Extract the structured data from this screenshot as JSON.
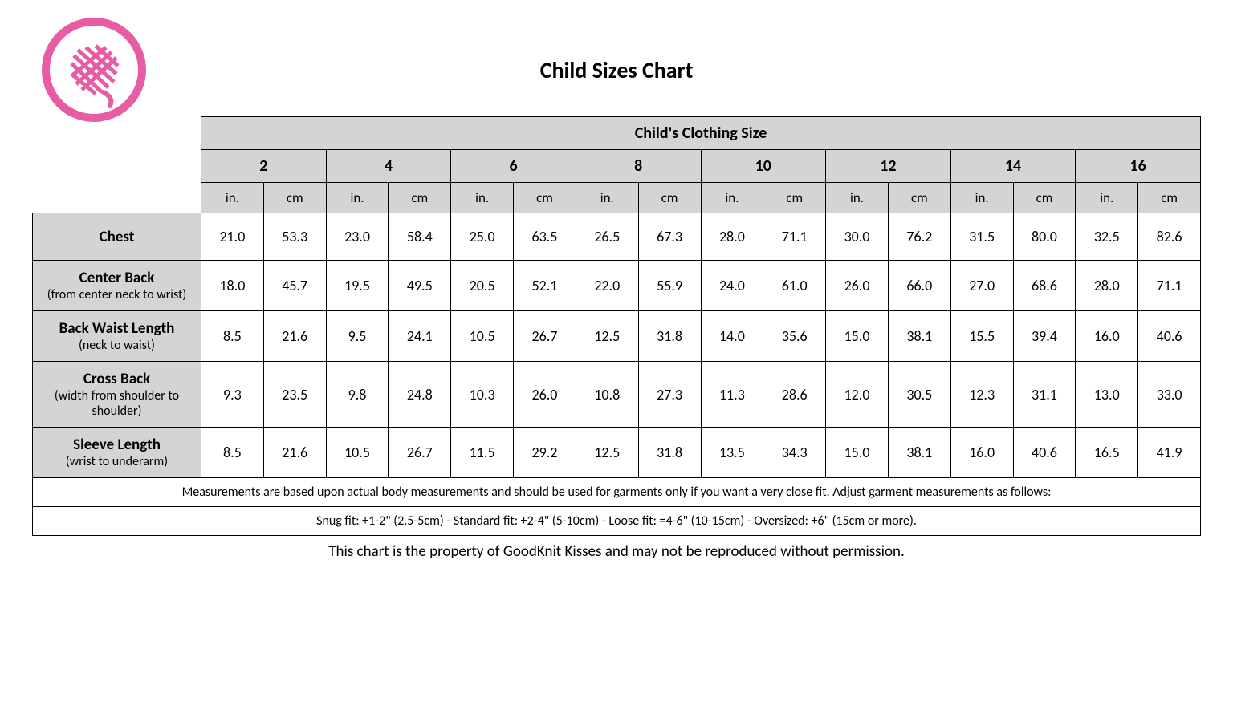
{
  "title": "Child Sizes Chart",
  "table_header": "Child's Clothing Size",
  "logo": {
    "circle_color": "#e75da3",
    "circle_stroke_width": 8,
    "diameter": 140
  },
  "sizes": [
    "2",
    "4",
    "6",
    "8",
    "10",
    "12",
    "14",
    "16"
  ],
  "units": [
    "in.",
    "cm"
  ],
  "rows": [
    {
      "label": "Chest",
      "sublabel": "",
      "values": [
        "21.0",
        "53.3",
        "23.0",
        "58.4",
        "25.0",
        "63.5",
        "26.5",
        "67.3",
        "28.0",
        "71.1",
        "30.0",
        "76.2",
        "31.5",
        "80.0",
        "32.5",
        "82.6"
      ]
    },
    {
      "label": "Center Back",
      "sublabel": "(from center neck to wrist)",
      "values": [
        "18.0",
        "45.7",
        "19.5",
        "49.5",
        "20.5",
        "52.1",
        "22.0",
        "55.9",
        "24.0",
        "61.0",
        "26.0",
        "66.0",
        "27.0",
        "68.6",
        "28.0",
        "71.1"
      ]
    },
    {
      "label": "Back Waist Length",
      "sublabel": "(neck to waist)",
      "values": [
        "8.5",
        "21.6",
        "9.5",
        "24.1",
        "10.5",
        "26.7",
        "12.5",
        "31.8",
        "14.0",
        "35.6",
        "15.0",
        "38.1",
        "15.5",
        "39.4",
        "16.0",
        "40.6"
      ]
    },
    {
      "label": "Cross Back",
      "sublabel": "(width from shoulder to shoulder)",
      "values": [
        "9.3",
        "23.5",
        "9.8",
        "24.8",
        "10.3",
        "26.0",
        "10.8",
        "27.3",
        "11.3",
        "28.6",
        "12.0",
        "30.5",
        "12.3",
        "31.1",
        "13.0",
        "33.0"
      ]
    },
    {
      "label": "Sleeve Length",
      "sublabel": "(wrist to underarm)",
      "values": [
        "8.5",
        "21.6",
        "10.5",
        "26.7",
        "11.5",
        "29.2",
        "12.5",
        "31.8",
        "13.5",
        "34.3",
        "15.0",
        "38.1",
        "16.0",
        "40.6",
        "16.5",
        "41.9"
      ]
    }
  ],
  "note1": "Measurements are based upon actual body measurements and should be used for garments only if you want a very close fit.  Adjust garment measurements as follows:",
  "note2": "Snug fit: +1-2\" (2.5-5cm)   -   Standard fit: +2-4\" (5-10cm)   -    Loose fit: =4-6\" (10-15cm)   -    Oversized: +6\" (15cm or more).",
  "footer": "This chart is the property of GoodKnit Kisses and may not be reproduced without permission.",
  "colors": {
    "header_bg": "#d4d4d4",
    "border": "#000000",
    "text": "#000000",
    "background": "#ffffff"
  }
}
